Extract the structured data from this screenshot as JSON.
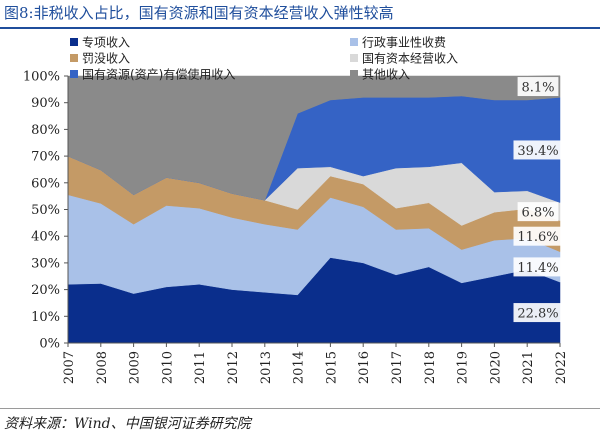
{
  "header": {
    "figure_no": "图8:",
    "title": "非税收入占比，国有资源和国有资本经营收入弹性较高"
  },
  "footer": {
    "source": "资料来源：Wind、中国银河证券研究院"
  },
  "chart_data": {
    "type": "area",
    "stacked": true,
    "x": [
      "2007",
      "2008",
      "2009",
      "2010",
      "2011",
      "2012",
      "2013",
      "2014",
      "2015",
      "2016",
      "2017",
      "2018",
      "2019",
      "2020",
      "2021",
      "2022"
    ],
    "ylim": [
      0,
      100
    ],
    "yticks": [
      "0%",
      "10%",
      "20%",
      "30%",
      "40%",
      "50%",
      "60%",
      "70%",
      "80%",
      "90%",
      "100%"
    ],
    "legend_position": "top",
    "series": [
      {
        "name": "专项收入",
        "color": "#0a2e8c",
        "values": [
          22,
          22.3,
          18.5,
          21,
          22,
          20,
          19,
          18,
          32,
          30,
          25.5,
          28.5,
          22.5,
          25,
          27.5,
          22.8
        ]
      },
      {
        "name": "行政事业性收费",
        "color": "#a9c1e8",
        "values": [
          33.5,
          30,
          26,
          30.5,
          28.5,
          27,
          25.5,
          24.5,
          22.5,
          21,
          17,
          14.5,
          12.5,
          13.5,
          11.8,
          11.4
        ]
      },
      {
        "name": "罚没收入",
        "color": "#c49a66",
        "values": [
          14.5,
          12.5,
          11,
          10.5,
          9.5,
          9,
          9,
          7.5,
          8,
          8.5,
          8,
          9.5,
          9,
          10.5,
          11,
          11.6
        ]
      },
      {
        "name": "国有资本经营收入",
        "color": "#d9d9d9",
        "values": [
          0,
          0,
          0,
          0,
          0,
          0,
          0,
          15.5,
          3.5,
          3,
          15,
          13.5,
          23.5,
          7.5,
          6.7,
          6.8
        ]
      },
      {
        "name": "国有资源(资产)有偿使用收入",
        "color": "#3563c5",
        "values": [
          0,
          0,
          0,
          0,
          0,
          0,
          0,
          20.5,
          25,
          29.5,
          26.5,
          26,
          25,
          34.5,
          34,
          39.4
        ]
      },
      {
        "name": "其他收入",
        "color": "#8a8a8a",
        "values": [
          30,
          35.2,
          44.5,
          38,
          40,
          44,
          46.5,
          14,
          9,
          8,
          8,
          8,
          7.5,
          9,
          9,
          8.1
        ]
      }
    ],
    "data_labels": [
      {
        "text": "8.1%",
        "series": "其他收入",
        "x": "2022"
      },
      {
        "text": "39.4%",
        "series": "国有资源(资产)有偿使用收入",
        "x": "2022"
      },
      {
        "text": "6.8%",
        "series": "国有资本经营收入",
        "x": "2022"
      },
      {
        "text": "11.6%",
        "series": "罚没收入",
        "x": "2022"
      },
      {
        "text": "11.4%",
        "series": "行政事业性收费",
        "x": "2022"
      },
      {
        "text": "22.8%",
        "series": "专项收入",
        "x": "2022"
      }
    ]
  }
}
